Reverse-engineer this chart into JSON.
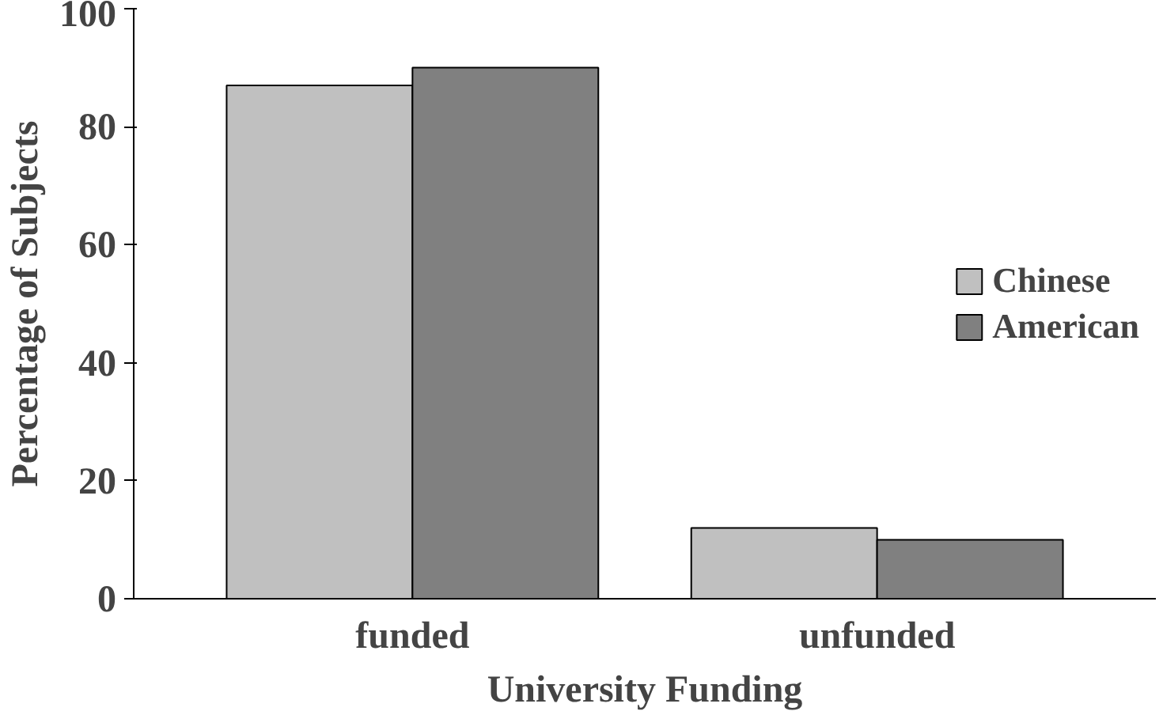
{
  "chart_data": {
    "type": "bar",
    "xlabel": "University Funding",
    "ylabel": "Percentage of Subjects",
    "categories": [
      "funded",
      "unfunded"
    ],
    "series": [
      {
        "name": "Chinese",
        "color": "#c0c0c0",
        "values": [
          87,
          12
        ]
      },
      {
        "name": "American",
        "color": "#808080",
        "values": [
          90,
          10
        ]
      }
    ],
    "ylim": [
      0,
      100
    ],
    "yticks": [
      0,
      20,
      40,
      60,
      80,
      100
    ],
    "grid": false,
    "legend": "right"
  }
}
